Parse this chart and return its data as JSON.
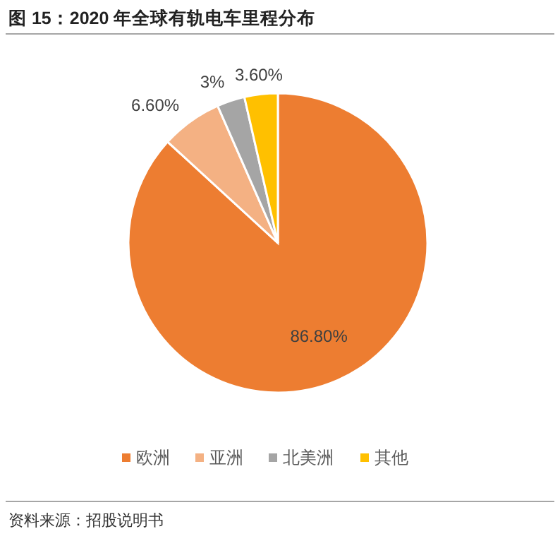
{
  "chart_data": {
    "type": "pie",
    "title": "图 15：2020 年全球有轨电车里程分布",
    "categories": [
      "欧洲",
      "亚洲",
      "北美洲",
      "其他"
    ],
    "values": [
      86.8,
      6.6,
      3,
      3.6
    ],
    "colors": [
      "#ed7d31",
      "#f4b183",
      "#a5a5a5",
      "#ffc000"
    ],
    "value_labels": [
      "86.80%",
      "6.60%",
      "3%",
      "3.60%"
    ],
    "legend": "bottom",
    "annotations": [
      "资料来源：招股说明书"
    ]
  }
}
